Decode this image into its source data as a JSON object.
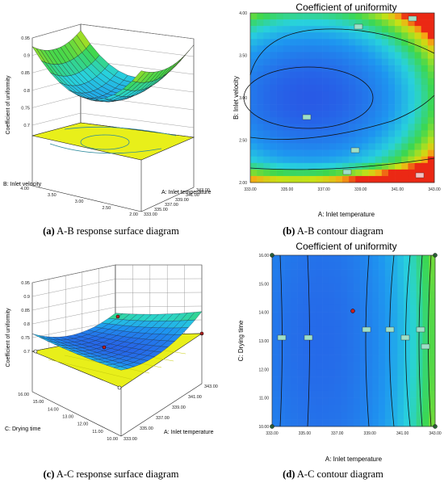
{
  "captions": {
    "a": {
      "letter": "(a)",
      "text": " A-B response surface diagram"
    },
    "b": {
      "letter": "(b)",
      "text": " A-B contour diagram"
    },
    "c": {
      "letter": "(c)",
      "text": " A-C response surface diagram"
    },
    "d": {
      "letter": "(d)",
      "text": " A-C contour diagram"
    }
  },
  "chart_data": [
    {
      "id": "a",
      "type": "surface",
      "title": "",
      "zlabel": "Coefficient of uniformity",
      "xlabel": "A: Inlet temperature",
      "ylabel": "B: Inlet velocity",
      "z_ticks": [
        "0.95",
        "0.9",
        "0.85",
        "0.8",
        "0.75",
        "0.7"
      ],
      "x_ticks": [
        "333.00",
        "335.00",
        "337.00",
        "339.00",
        "341.00",
        "343.00"
      ],
      "y_ticks": [
        "2.00",
        "2.50",
        "3.00",
        "3.50",
        "4.00"
      ],
      "zlim": [
        0.7,
        0.95
      ],
      "xlim": [
        333,
        343
      ],
      "ylim": [
        2,
        4
      ]
    },
    {
      "id": "b",
      "type": "heatmap",
      "title": "Coefficient of uniformity",
      "xlabel": "A: Inlet temperature",
      "ylabel": "B: Inlet velocity",
      "x_ticks": [
        "333.00",
        "335.00",
        "337.00",
        "339.00",
        "341.00",
        "343.00"
      ],
      "y_ticks": [
        "2.00",
        "2.50",
        "3.00",
        "3.50",
        "4.00"
      ],
      "xlim": [
        333,
        343
      ],
      "ylim": [
        2,
        4
      ]
    },
    {
      "id": "c",
      "type": "surface",
      "title": "",
      "zlabel": "Coefficient of uniformity",
      "xlabel": "A: Inlet temperature",
      "ylabel": "C: Drying time",
      "z_ticks": [
        "0.95",
        "0.9",
        "0.85",
        "0.8",
        "0.75",
        "0.7"
      ],
      "x_ticks": [
        "333.00",
        "335.00",
        "337.00",
        "339.00",
        "341.00",
        "343.00"
      ],
      "y_ticks": [
        "10.00",
        "11.00",
        "12.00",
        "13.00",
        "14.00",
        "15.00",
        "16.00"
      ],
      "zlim": [
        0.7,
        0.95
      ],
      "xlim": [
        333,
        343
      ],
      "ylim": [
        10,
        16
      ]
    },
    {
      "id": "d",
      "type": "heatmap",
      "title": "Coefficient of uniformity",
      "xlabel": "A: Inlet temperature",
      "ylabel": "C: Drying time",
      "x_ticks": [
        "333.00",
        "335.00",
        "337.00",
        "339.00",
        "341.00",
        "343.00"
      ],
      "y_ticks": [
        "10.00",
        "11.00",
        "12.00",
        "13.00",
        "14.00",
        "15.00",
        "16.00"
      ],
      "xlim": [
        333,
        343
      ],
      "ylim": [
        10,
        16
      ]
    }
  ]
}
